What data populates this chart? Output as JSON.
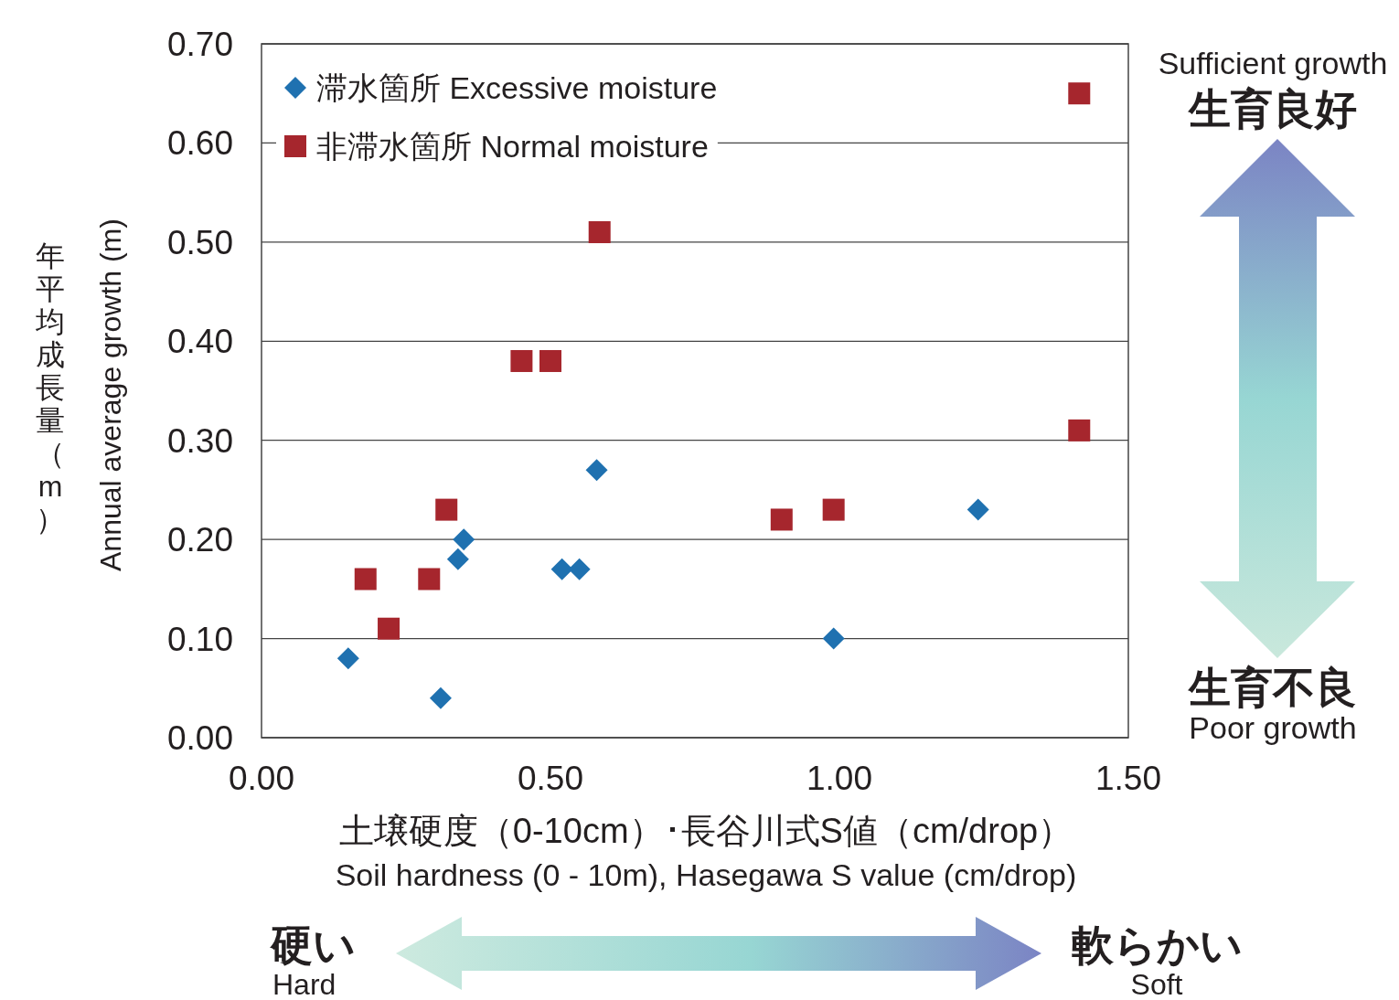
{
  "chart_data": {
    "type": "scatter",
    "xlabel": "土壌硬度（0-10cm）･長谷川式S値（cm/drop）\nSoil hardness (0 - 10m), Hasegawa S value (cm/drop)",
    "ylabel": "年平均成長量（m）\nAnnual average growth (m)",
    "xlim": [
      0,
      1.5
    ],
    "ylim": [
      0,
      0.7
    ],
    "xticks": [
      {
        "value": 0,
        "label": "0.00"
      },
      {
        "value": 0.5,
        "label": "0.50"
      },
      {
        "value": 1,
        "label": "1.00"
      },
      {
        "value": 1.5,
        "label": "1.50"
      }
    ],
    "yticks": [
      {
        "value": 0,
        "label": "0.00"
      },
      {
        "value": 0.1,
        "label": "0.10"
      },
      {
        "value": 0.2,
        "label": "0.20"
      },
      {
        "value": 0.3,
        "label": "0.30"
      },
      {
        "value": 0.4,
        "label": "0.40"
      },
      {
        "value": 0.5,
        "label": "0.50"
      },
      {
        "value": 0.6,
        "label": "0.60"
      },
      {
        "value": 0.7,
        "label": "0.70"
      }
    ],
    "grid": "y",
    "legend": "top left",
    "series": [
      {
        "name": "滞水箇所 Excessive moisture",
        "color": "#1f71b0",
        "marker": "diamond",
        "x": [
          0.15,
          0.31,
          0.34,
          0.35,
          0.52,
          0.55,
          0.58,
          0.99,
          1.24
        ],
        "values": [
          0.08,
          0.04,
          0.18,
          0.2,
          0.17,
          0.17,
          0.27,
          0.1,
          0.23
        ]
      },
      {
        "name": "非滞水箇所 Normal moisture",
        "color": "#a6262d",
        "marker": "square",
        "x": [
          0.18,
          0.22,
          0.29,
          0.32,
          0.45,
          0.5,
          0.585,
          0.9,
          0.99,
          1.415,
          1.415
        ],
        "values": [
          0.16,
          0.11,
          0.16,
          0.23,
          0.38,
          0.38,
          0.51,
          0.22,
          0.23,
          0.65,
          0.31
        ]
      }
    ],
    "annotations": [
      "Sufficient growth",
      "生育良好",
      "生育不良",
      "Poor growth",
      "硬い",
      "Hard",
      "軟らかい",
      "Soft"
    ]
  }
}
